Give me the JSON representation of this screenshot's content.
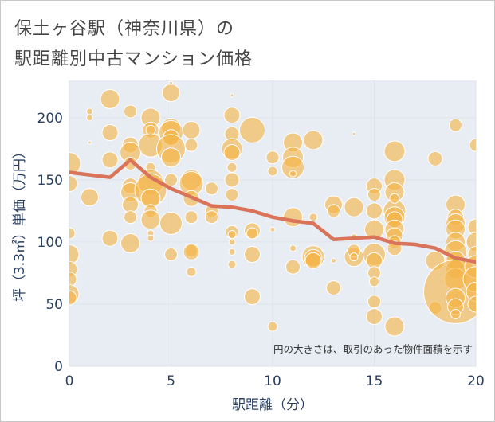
{
  "header": {
    "title_line1": "保土ヶ谷駅（神奈川県）の",
    "title_line2": "駅距離別中古マンション価格"
  },
  "chart_data": {
    "type": "scatter",
    "xlabel": "駅距離（分）",
    "ylabel": "坪（3.3㎡）単価（万円）",
    "xlim": [
      0,
      20
    ],
    "ylim": [
      0,
      230
    ],
    "xticks": [
      0,
      5,
      10,
      15,
      20
    ],
    "yticks": [
      0,
      50,
      100,
      150,
      200
    ],
    "annotation": "円の大きさは、取引のあった物件面積を示す",
    "colors": {
      "bubble": "#f5b342",
      "bubble_edge": "#ffffff",
      "line": "#d9735a",
      "grid": "#dde3ea",
      "plot_bg": "#e8edf3"
    },
    "trend": {
      "x": [
        0,
        1,
        2,
        3,
        4,
        5,
        6,
        7,
        8,
        9,
        10,
        11,
        12,
        13,
        14,
        15,
        16,
        17,
        18,
        19,
        20
      ],
      "y": [
        156,
        154,
        152,
        166,
        152,
        143,
        136,
        129,
        128,
        125,
        120,
        117,
        115,
        102,
        103,
        104,
        99,
        98,
        95,
        87,
        84
      ]
    },
    "points": [
      [
        0,
        163,
        14
      ],
      [
        0,
        147,
        10
      ],
      [
        0,
        107,
        7
      ],
      [
        0,
        90,
        12
      ],
      [
        0,
        78,
        10
      ],
      [
        0,
        70,
        9
      ],
      [
        0,
        58,
        12
      ],
      [
        0,
        55,
        9
      ],
      [
        1,
        205,
        4
      ],
      [
        1,
        200,
        4
      ],
      [
        1,
        136,
        11
      ],
      [
        1,
        180,
        2
      ],
      [
        2,
        215,
        12
      ],
      [
        2,
        188,
        10
      ],
      [
        2,
        166,
        10
      ],
      [
        2,
        103,
        10
      ],
      [
        3,
        205,
        8
      ],
      [
        3,
        178,
        10
      ],
      [
        3,
        172,
        13
      ],
      [
        3,
        163,
        8
      ],
      [
        3,
        145,
        10
      ],
      [
        3,
        140,
        12
      ],
      [
        3,
        130,
        10
      ],
      [
        3,
        120,
        8
      ],
      [
        3,
        99,
        12
      ],
      [
        4,
        200,
        12
      ],
      [
        4,
        190,
        10
      ],
      [
        4,
        178,
        15
      ],
      [
        4,
        160,
        6
      ],
      [
        4,
        148,
        16
      ],
      [
        4,
        142,
        20
      ],
      [
        4,
        135,
        12
      ],
      [
        4,
        125,
        8
      ],
      [
        4,
        118,
        12
      ],
      [
        4,
        107,
        4
      ],
      [
        4,
        103,
        4
      ],
      [
        4,
        190,
        6
      ],
      [
        5,
        220,
        11
      ],
      [
        5,
        192,
        12
      ],
      [
        5,
        188,
        15
      ],
      [
        5,
        184,
        10
      ],
      [
        5,
        175,
        18
      ],
      [
        5,
        168,
        12
      ],
      [
        5,
        150,
        8
      ],
      [
        5,
        115,
        14
      ],
      [
        5,
        90,
        8
      ],
      [
        5,
        228,
        2
      ],
      [
        6,
        190,
        11
      ],
      [
        6,
        178,
        8
      ],
      [
        6,
        150,
        13
      ],
      [
        6,
        147,
        15
      ],
      [
        6,
        135,
        10
      ],
      [
        6,
        120,
        8
      ],
      [
        6,
        93,
        8
      ],
      [
        6,
        92,
        10
      ],
      [
        6,
        76,
        6
      ],
      [
        7,
        143,
        8
      ],
      [
        7,
        125,
        8
      ],
      [
        7,
        120,
        8
      ],
      [
        8,
        202,
        10
      ],
      [
        8,
        187,
        9
      ],
      [
        8,
        175,
        13
      ],
      [
        8,
        172,
        10
      ],
      [
        8,
        160,
        6
      ],
      [
        8,
        150,
        9
      ],
      [
        8,
        138,
        8
      ],
      [
        8,
        108,
        8
      ],
      [
        8,
        106,
        5
      ],
      [
        8,
        100,
        4
      ],
      [
        8,
        92,
        4
      ],
      [
        8,
        82,
        5
      ],
      [
        8,
        218,
        2
      ],
      [
        9,
        190,
        16
      ],
      [
        9,
        109,
        10
      ],
      [
        9,
        107,
        7
      ],
      [
        9,
        90,
        10
      ],
      [
        9,
        56,
        10
      ],
      [
        10,
        168,
        8
      ],
      [
        10,
        157,
        6
      ],
      [
        10,
        32,
        6
      ],
      [
        10,
        110,
        3
      ],
      [
        11,
        180,
        12
      ],
      [
        11,
        168,
        13
      ],
      [
        11,
        160,
        14
      ],
      [
        11,
        120,
        12
      ],
      [
        11,
        95,
        4
      ],
      [
        11,
        80,
        9
      ],
      [
        11,
        155,
        4
      ],
      [
        12,
        182,
        12
      ],
      [
        12,
        88,
        14
      ],
      [
        12,
        87,
        11
      ],
      [
        12,
        85,
        10
      ],
      [
        12,
        120,
        5
      ],
      [
        13,
        130,
        11
      ],
      [
        13,
        125,
        8
      ],
      [
        13,
        63,
        9
      ],
      [
        13,
        85,
        3
      ],
      [
        14,
        128,
        12
      ],
      [
        14,
        88,
        12
      ],
      [
        14,
        93,
        8
      ],
      [
        14,
        104,
        4
      ],
      [
        14,
        88,
        5
      ],
      [
        14,
        187,
        2
      ],
      [
        15,
        145,
        10
      ],
      [
        15,
        138,
        8
      ],
      [
        15,
        125,
        10
      ],
      [
        15,
        110,
        12
      ],
      [
        15,
        90,
        14
      ],
      [
        15,
        85,
        10
      ],
      [
        15,
        75,
        8
      ],
      [
        15,
        68,
        6
      ],
      [
        15,
        52,
        8
      ],
      [
        15,
        40,
        10
      ],
      [
        16,
        173,
        13
      ],
      [
        16,
        150,
        13
      ],
      [
        16,
        140,
        12
      ],
      [
        16,
        125,
        14
      ],
      [
        16,
        120,
        13
      ],
      [
        16,
        118,
        10
      ],
      [
        16,
        110,
        12
      ],
      [
        16,
        105,
        10
      ],
      [
        16,
        100,
        8
      ],
      [
        16,
        95,
        9
      ],
      [
        16,
        32,
        12
      ],
      [
        16,
        135,
        6
      ],
      [
        18,
        167,
        9
      ],
      [
        18,
        85,
        12
      ],
      [
        18,
        47,
        8
      ],
      [
        19,
        194,
        8
      ],
      [
        19,
        130,
        12
      ],
      [
        19,
        120,
        10
      ],
      [
        19,
        115,
        12
      ],
      [
        19,
        110,
        12
      ],
      [
        19,
        100,
        12
      ],
      [
        19,
        92,
        14
      ],
      [
        19,
        85,
        12
      ],
      [
        19,
        78,
        12
      ],
      [
        19,
        70,
        14
      ],
      [
        19,
        60,
        40
      ],
      [
        19,
        55,
        12
      ],
      [
        19,
        48,
        10
      ],
      [
        19,
        42,
        6
      ],
      [
        20,
        178,
        8
      ],
      [
        20,
        112,
        10
      ],
      [
        20,
        100,
        12
      ],
      [
        20,
        90,
        10
      ],
      [
        20,
        80,
        14
      ],
      [
        20,
        70,
        16
      ],
      [
        20,
        60,
        12
      ],
      [
        20,
        50,
        10
      ]
    ]
  }
}
